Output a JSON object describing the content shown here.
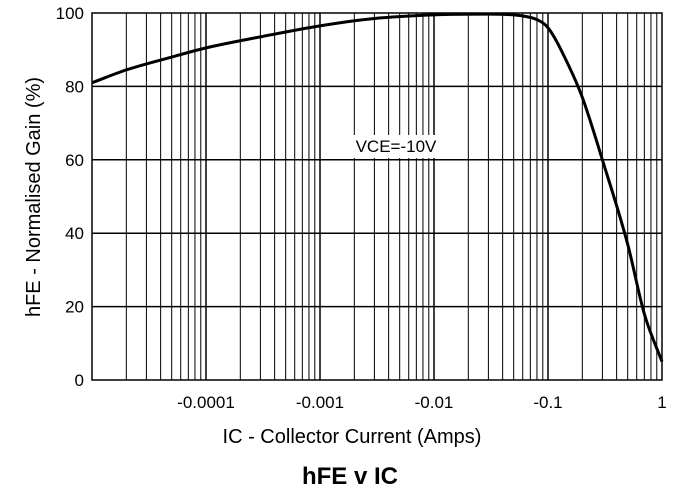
{
  "chart_data": {
    "type": "line",
    "title": "hFE v IC",
    "xlabel": "IC - Collector Current (Amps)",
    "ylabel": "hFE - Normalised Gain (%)",
    "x_scale": "log",
    "xlim": [
      1e-05,
      1
    ],
    "ylim": [
      0,
      100
    ],
    "x_ticks": [
      {
        "value": 0.0001,
        "label": "-0.0001"
      },
      {
        "value": 0.001,
        "label": "-0.001"
      },
      {
        "value": 0.01,
        "label": "-0.01"
      },
      {
        "value": 0.1,
        "label": "-0.1"
      },
      {
        "value": 1,
        "label": "1"
      }
    ],
    "y_ticks": [
      {
        "value": 0,
        "label": "0"
      },
      {
        "value": 20,
        "label": "20"
      },
      {
        "value": 40,
        "label": "40"
      },
      {
        "value": 60,
        "label": "60"
      },
      {
        "value": 80,
        "label": "80"
      },
      {
        "value": 100,
        "label": "100"
      }
    ],
    "grid": true,
    "annotation": "VCE=-10V",
    "series": [
      {
        "values": [
          {
            "x": 1e-05,
            "y": 81
          },
          {
            "x": 2e-05,
            "y": 84.5
          },
          {
            "x": 5e-05,
            "y": 88
          },
          {
            "x": 0.0001,
            "y": 90.5
          },
          {
            "x": 0.0003,
            "y": 93.5
          },
          {
            "x": 0.001,
            "y": 96.5
          },
          {
            "x": 0.003,
            "y": 98.5
          },
          {
            "x": 0.01,
            "y": 99.5
          },
          {
            "x": 0.03,
            "y": 99.7
          },
          {
            "x": 0.06,
            "y": 99.2
          },
          {
            "x": 0.08,
            "y": 98.2
          },
          {
            "x": 0.1,
            "y": 96
          },
          {
            "x": 0.15,
            "y": 86
          },
          {
            "x": 0.2,
            "y": 77
          },
          {
            "x": 0.3,
            "y": 60
          },
          {
            "x": 0.5,
            "y": 37
          },
          {
            "x": 0.7,
            "y": 18
          },
          {
            "x": 1,
            "y": 5
          }
        ]
      }
    ]
  }
}
